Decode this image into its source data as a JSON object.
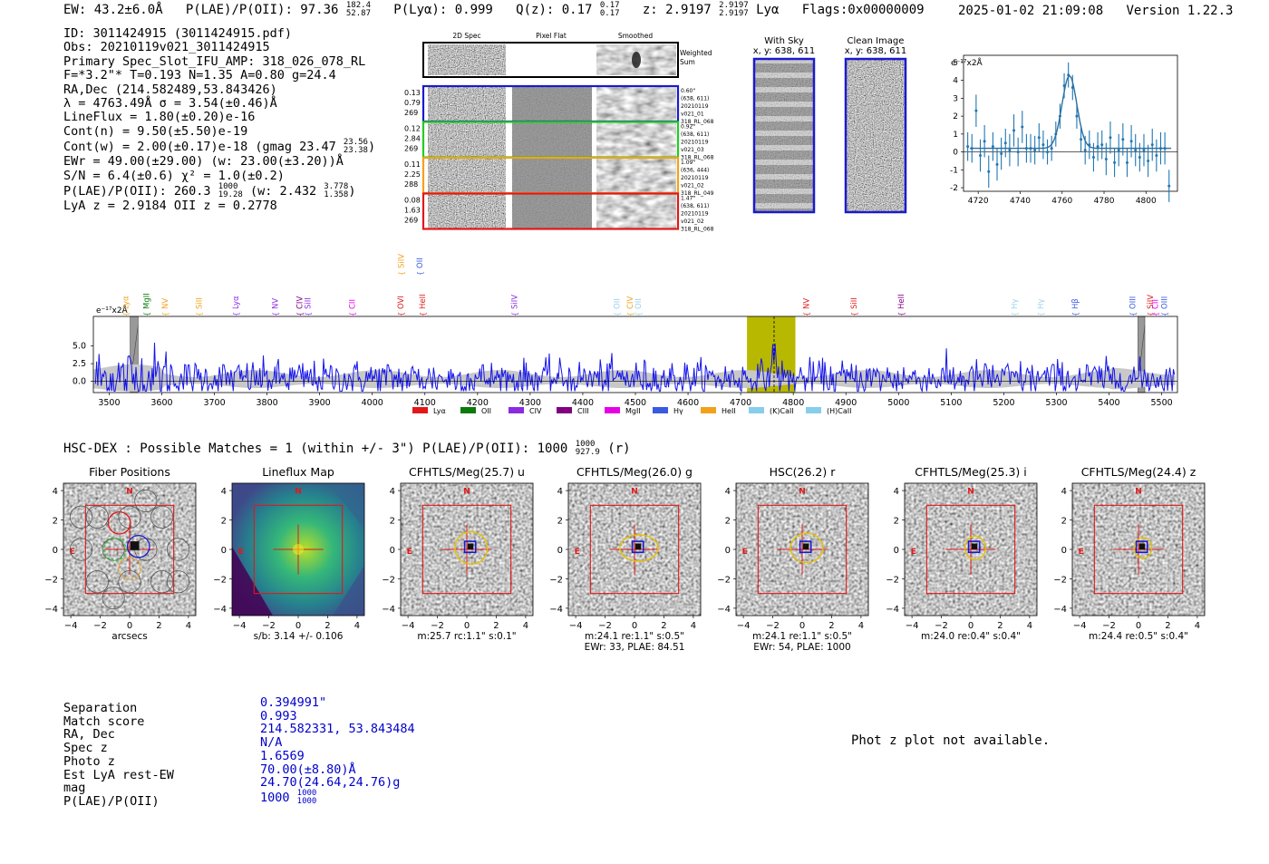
{
  "header": {
    "line": "EW: 43.2±6.0Å  P(LAE)/P(OII): 97.36 ^182.4_52.87  P(Lyα): 0.999  Q(z): 0.17 ^0.17_0.17  z: 2.9197 ^2.9197_2.9197 Lyα  Flags:0x00000009",
    "ew": "EW: 43.2±6.0Å",
    "plae": "P(LAE)/P(OII): 97.36",
    "plae_hi": "182.4",
    "plae_lo": "52.87",
    "plya": "P(Lyα): 0.999",
    "qz": "Q(z): 0.17",
    "qz_hi": "0.17",
    "qz_lo": "0.17",
    "z": "z: 2.9197",
    "z_hi": "2.9197",
    "z_lo": "2.9197",
    "z_line": "Lyα",
    "flags": "Flags:0x00000009",
    "date": "2025-01-02 21:09:08",
    "version": "Version 1.22.3"
  },
  "info": {
    "id": "ID: 3011424915 (3011424915.pdf)",
    "obs": "Obs: 20210119v021_3011424915",
    "primary": "Primary Spec_Slot_IFU_AMP: 318_026_078_RL",
    "params": "F=*3.2\"*  T=0.193  N=1.35  A=0.80  g=24.4",
    "radec": "RA,Dec (214.582489,53.843426)",
    "lambda": "λ = 4763.49Å  σ = 3.54(±0.46)Å",
    "lineflux": "LineFlux = 1.80(±0.20)e-16",
    "contn": "Cont(n) = 9.50(±5.50)e-19",
    "contw": "Cont(w) = 2.00(±0.17)e-18 (gmag 23.47",
    "contw_hi": "23.56",
    "contw_lo": "23.38",
    "ewr": "EWr = 49.00(±29.00) (w: 23.00(±3.20))Å",
    "sn": "S/N = 6.4(±0.6)  χ² = 1.0(±0.2)",
    "plae": "P(LAE)/P(OII): 260.3",
    "plae_hi": "1000",
    "plae_lo": "19.28",
    "plae_w": "(w: 2.432",
    "plae_w_hi": "3.778",
    "plae_w_lo": "1.358",
    "lya": "LyA z = 2.9184  OII z = 0.2778"
  },
  "fiber_panel": {
    "col_headers": [
      "2D Spec",
      "Pixel Flat",
      "Smoothed"
    ],
    "weighted_label": "Weighted Sum",
    "rows": [
      {
        "nums": [
          "0.13",
          "0.79",
          "269"
        ],
        "color": "#1a1acc",
        "meta": [
          "0.60\"",
          "(638, 611)",
          "20210119",
          "v021_01",
          "318_RL_068"
        ]
      },
      {
        "nums": [
          "0.12",
          "2.84",
          "269"
        ],
        "color": "#22cc22",
        "meta": [
          "0.92\"",
          "(638, 611)",
          "20210119",
          "v021_03",
          "318_RL_068"
        ]
      },
      {
        "nums": [
          "0.11",
          "2.25",
          "288"
        ],
        "color": "#f2a21a",
        "meta": [
          "1.09\"",
          "(636, 444)",
          "20210119",
          "v021_02",
          "318_RL_049"
        ]
      },
      {
        "nums": [
          "0.08",
          "1.63",
          "269"
        ],
        "color": "#e01818",
        "meta": [
          "1.47\"",
          "(638, 611)",
          "20210119",
          "v021_02",
          "318_RL_068"
        ]
      }
    ]
  },
  "sky_panels": {
    "with_sky": "With Sky",
    "with_sky_xy": "x, y: 638, 611",
    "clean": "Clean Image",
    "clean_xy": "x, y: 638, 611"
  },
  "colors": {
    "blue": "#0000cc",
    "spec_blue": "#1414ee",
    "olive": "#b8b800",
    "red": "#e01818",
    "green": "#0a7a0a",
    "purple": "#8a2be2",
    "violet": "#800080",
    "magenta": "#e600e6",
    "royal": "#3a5ae0",
    "orange": "#f2a21a",
    "sky": "#87ceeb",
    "lightblue": "#9ad0ee",
    "zoom_line": "#2f6f9f"
  },
  "chart_data": [
    {
      "type": "line",
      "name": "zoom_spectrum",
      "ylabel": "e⁻¹⁷x2Å",
      "xlim": [
        4713,
        4815
      ],
      "ylim": [
        -2.2,
        5.4
      ],
      "xticks": [
        4720,
        4740,
        4760,
        4780,
        4800
      ],
      "yticks": [
        -2,
        -1,
        0,
        1,
        2,
        3,
        4,
        5
      ],
      "points": [
        {
          "x": 4715.0,
          "y": 0.3,
          "e": 0.8
        },
        {
          "x": 4717.0,
          "y": 0.2,
          "e": 0.8
        },
        {
          "x": 4719.0,
          "y": 2.3,
          "e": 0.9
        },
        {
          "x": 4721.0,
          "y": -0.2,
          "e": 0.9
        },
        {
          "x": 4723.0,
          "y": 0.6,
          "e": 0.9
        },
        {
          "x": 4725.0,
          "y": -1.1,
          "e": 0.9
        },
        {
          "x": 4727.0,
          "y": 0.3,
          "e": 0.8
        },
        {
          "x": 4729.0,
          "y": -0.7,
          "e": 0.9
        },
        {
          "x": 4731.0,
          "y": -0.1,
          "e": 0.9
        },
        {
          "x": 4733.0,
          "y": 0.5,
          "e": 0.8
        },
        {
          "x": 4735.0,
          "y": 0.1,
          "e": 0.9
        },
        {
          "x": 4737.0,
          "y": 1.2,
          "e": 0.9
        },
        {
          "x": 4739.0,
          "y": 0.0,
          "e": 0.8
        },
        {
          "x": 4741.0,
          "y": 1.4,
          "e": 0.9
        },
        {
          "x": 4743.0,
          "y": 0.2,
          "e": 0.8
        },
        {
          "x": 4745.0,
          "y": 0.2,
          "e": 0.8
        },
        {
          "x": 4747.0,
          "y": 0.1,
          "e": 0.8
        },
        {
          "x": 4749.0,
          "y": 0.8,
          "e": 0.8
        },
        {
          "x": 4751.0,
          "y": 0.4,
          "e": 0.8
        },
        {
          "x": 4753.0,
          "y": 0.0,
          "e": 0.7
        },
        {
          "x": 4755.0,
          "y": 0.2,
          "e": 0.7
        },
        {
          "x": 4757.0,
          "y": 1.0,
          "e": 0.7
        },
        {
          "x": 4759.0,
          "y": 2.0,
          "e": 0.7
        },
        {
          "x": 4761.0,
          "y": 3.7,
          "e": 0.7
        },
        {
          "x": 4763.0,
          "y": 4.3,
          "e": 0.7
        },
        {
          "x": 4765.0,
          "y": 3.6,
          "e": 0.7
        },
        {
          "x": 4767.0,
          "y": 2.0,
          "e": 0.7
        },
        {
          "x": 4769.0,
          "y": 0.7,
          "e": 0.7
        },
        {
          "x": 4771.0,
          "y": 0.1,
          "e": 0.8
        },
        {
          "x": 4773.0,
          "y": 0.4,
          "e": 0.8
        },
        {
          "x": 4775.0,
          "y": -0.3,
          "e": 0.8
        },
        {
          "x": 4777.0,
          "y": 0.3,
          "e": 0.8
        },
        {
          "x": 4779.0,
          "y": 0.4,
          "e": 0.8
        },
        {
          "x": 4781.0,
          "y": -0.4,
          "e": 0.9
        },
        {
          "x": 4783.0,
          "y": 0.8,
          "e": 0.9
        },
        {
          "x": 4785.0,
          "y": -0.6,
          "e": 0.8
        },
        {
          "x": 4787.0,
          "y": 0.1,
          "e": 0.9
        },
        {
          "x": 4789.0,
          "y": 0.7,
          "e": 0.9
        },
        {
          "x": 4791.0,
          "y": -0.6,
          "e": 0.8
        },
        {
          "x": 4793.0,
          "y": 0.6,
          "e": 0.9
        },
        {
          "x": 4795.0,
          "y": 0.1,
          "e": 0.9
        },
        {
          "x": 4797.0,
          "y": -0.3,
          "e": 0.8
        },
        {
          "x": 4799.0,
          "y": 0.1,
          "e": 0.9
        },
        {
          "x": 4801.0,
          "y": -0.5,
          "e": 0.9
        },
        {
          "x": 4803.0,
          "y": 0.4,
          "e": 0.9
        },
        {
          "x": 4805.0,
          "y": -0.2,
          "e": 0.9
        },
        {
          "x": 4807.0,
          "y": 0.2,
          "e": 0.9
        },
        {
          "x": 4809.0,
          "y": 0.2,
          "e": 0.9
        },
        {
          "x": 4811.0,
          "y": -1.9,
          "e": 0.9
        }
      ],
      "fit": {
        "center": 4763.5,
        "sigma": 3.54,
        "amp": 4.05,
        "cont": 0.2
      }
    },
    {
      "type": "line",
      "name": "full_spectrum",
      "ylabel": "e⁻¹⁷x2Å",
      "xlim": [
        3470,
        5530
      ],
      "ylim": [
        -1.6,
        9.2
      ],
      "xticks": [
        3500,
        3600,
        3700,
        3800,
        3900,
        4000,
        4100,
        4200,
        4300,
        4400,
        4500,
        4600,
        4700,
        4800,
        4900,
        5000,
        5100,
        5200,
        5300,
        5400,
        5500
      ],
      "yticks": [
        0.0,
        2.5,
        5.0
      ],
      "highlight_band": [
        4712,
        4804
      ],
      "line_center": 4763.5,
      "masked_bands": [
        [
          3540,
          3555
        ],
        [
          5455,
          5468
        ]
      ],
      "line_markers": [
        {
          "label": "Lyα",
          "x": 3531,
          "row": 0,
          "color": "#f2a21a"
        },
        {
          "label": "MgII",
          "x": 3571,
          "row": 0,
          "color": "#0a7a0a"
        },
        {
          "label": "NV",
          "x": 3606,
          "row": 0,
          "color": "#f2a21a"
        },
        {
          "label": "SiII",
          "x": 3671,
          "row": 0,
          "color": "#f2a21a"
        },
        {
          "label": "Lyα",
          "x": 3740,
          "row": 0,
          "color": "#8a2be2"
        },
        {
          "label": "NV",
          "x": 3815,
          "row": 0,
          "color": "#8a2be2"
        },
        {
          "label": "CIV",
          "x": 3862,
          "row": 0,
          "color": "#800080"
        },
        {
          "label": "SiII",
          "x": 3877,
          "row": 0,
          "color": "#8a2be2"
        },
        {
          "label": "CII",
          "x": 3962,
          "row": 0,
          "color": "#e600e6"
        },
        {
          "label": "OVI",
          "x": 4054,
          "row": 0,
          "color": "#e01818"
        },
        {
          "label": "HeII",
          "x": 4095,
          "row": 0,
          "color": "#e01818"
        },
        {
          "label": "SiIV",
          "x": 4055,
          "row": 1,
          "color": "#f2a21a"
        },
        {
          "label": "OII",
          "x": 4090,
          "row": 1,
          "color": "#3a5ae0"
        },
        {
          "label": "SiIV",
          "x": 4270,
          "row": 0,
          "color": "#8a2be2"
        },
        {
          "label": "OII",
          "x": 4465,
          "row": 0,
          "color": "#9ad0ee"
        },
        {
          "label": "CIV",
          "x": 4490,
          "row": 0,
          "color": "#f2a21a"
        },
        {
          "label": "OII",
          "x": 4505,
          "row": 0,
          "color": "#9ad0ee"
        },
        {
          "label": "NV",
          "x": 4825,
          "row": 0,
          "color": "#e01818"
        },
        {
          "label": "SiII",
          "x": 4915,
          "row": 0,
          "color": "#e01818"
        },
        {
          "label": "HeII",
          "x": 5005,
          "row": 0,
          "color": "#800080"
        },
        {
          "label": "Hγ",
          "x": 5220,
          "row": 0,
          "color": "#9ad0ee"
        },
        {
          "label": "Hγ",
          "x": 5270,
          "row": 0,
          "color": "#9ad0ee"
        },
        {
          "label": "Hβ",
          "x": 5335,
          "row": 0,
          "color": "#3a5ae0"
        },
        {
          "label": "OIII",
          "x": 5445,
          "row": 0,
          "color": "#3a5ae0"
        },
        {
          "label": "SiIV",
          "x": 5478,
          "row": 0,
          "color": "#e01818"
        },
        {
          "label": "CII",
          "x": 5488,
          "row": 0,
          "color": "#e600e6"
        },
        {
          "label": "OIII",
          "x": 5505,
          "row": 0,
          "color": "#3a5ae0"
        }
      ],
      "legend": [
        {
          "label": "Lyα",
          "color": "#e01818"
        },
        {
          "label": "OII",
          "color": "#0a7a0a"
        },
        {
          "label": "CIV",
          "color": "#8a2be2"
        },
        {
          "label": "CIII",
          "color": "#800080"
        },
        {
          "label": "MgII",
          "color": "#e600e6"
        },
        {
          "label": "Hγ",
          "color": "#3a5ae0"
        },
        {
          "label": "HeII",
          "color": "#f2a21a"
        },
        {
          "label": "(K)CaII",
          "color": "#87ceeb"
        },
        {
          "label": "(H)CaII",
          "color": "#87ceeb"
        }
      ]
    },
    {
      "type": "heatmap",
      "name": "cutouts",
      "xlim": [
        -4.5,
        4.5
      ],
      "ylim": [
        -4.5,
        4.5
      ],
      "ticks": [
        -4,
        -2,
        0,
        2,
        4
      ],
      "panels": [
        {
          "title": "Fiber Positions",
          "caption1": "arcsecs",
          "caption2": "",
          "style": "fiber"
        },
        {
          "title": "Lineflux Map",
          "caption1": "s/b: 3.14 +/- 0.106",
          "caption2": "",
          "style": "flux"
        },
        {
          "title": "CFHTLS/Meg(25.7) u",
          "caption1": "m:25.7 rc:1.1\"  s:0.1\"",
          "caption2": "",
          "style": "noise",
          "ell": [
            1.1,
            1.1
          ]
        },
        {
          "title": "CFHTLS/Meg(26.0) g",
          "caption1": "m:24.1  re:1.1\"  s:0.5\"",
          "caption2": "EWr: 33, PLAE: 84.51",
          "style": "noise",
          "ell": [
            1.3,
            0.9
          ]
        },
        {
          "title": "HSC(26.2) r",
          "caption1": "m:24.1  re:1.1\"  s:0.5\"",
          "caption2": "EWr: 54, PLAE: 1000",
          "style": "noise",
          "ell": [
            1.1,
            1.0
          ]
        },
        {
          "title": "CFHTLS/Meg(25.3) i",
          "caption1": "m:24.0  re:0.4\"  s:0.4\"",
          "caption2": "",
          "style": "noise",
          "ell": [
            0.7,
            0.8
          ]
        },
        {
          "title": "CFHTLS/Meg(24.4) z",
          "caption1": "m:24.4  re:0.5\"  s:0.4\"",
          "caption2": "",
          "style": "noise",
          "ell": [
            0.6,
            0.7
          ]
        }
      ]
    }
  ],
  "zoom_ylabel": "e⁻¹⁷x2Å",
  "full_ylabel": "e⁻¹⁷x2Å",
  "hsc": {
    "line": "HSC-DEX : Possible Matches = 1 (within +/- 3\")  P(LAE)/P(OII): 1000",
    "hi": "1000",
    "lo": "927.9",
    "suffix": "(r)"
  },
  "match": {
    "labels": [
      "Separation",
      "Match score",
      "RA, Dec",
      "Spec z",
      "Photo z",
      "Est LyA rest-EW",
      "mag",
      "P(LAE)/P(OII)"
    ],
    "values": [
      "0.394991\"",
      "0.993",
      "214.582331, 53.843484",
      "N/A",
      "1.6569",
      "70.00(±8.80)Å",
      "24.70(24.64,24.76)g",
      "1000"
    ],
    "plae_hi": "1000",
    "plae_lo": "1000"
  },
  "phot_z": "Phot z plot not available."
}
